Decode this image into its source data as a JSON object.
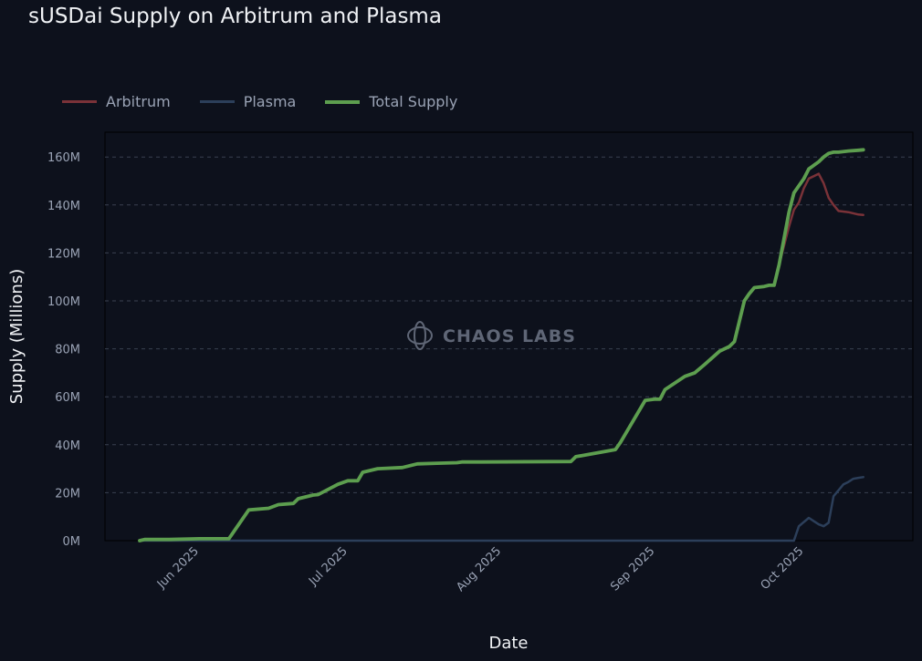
{
  "chart_data": {
    "type": "line",
    "title": "sUSDai Supply on Arbitrum and Plasma",
    "xlabel": "Date",
    "ylabel": "Supply (Millions)",
    "ylim": [
      0,
      170
    ],
    "y_ticks": [
      0,
      20,
      40,
      60,
      80,
      100,
      120,
      140,
      160
    ],
    "y_tick_labels": [
      "0M",
      "20M",
      "40M",
      "60M",
      "80M",
      "100M",
      "120M",
      "140M",
      "160M"
    ],
    "x_ticks": [
      "2025-06-01",
      "2025-07-01",
      "2025-08-01",
      "2025-09-01",
      "2025-10-01"
    ],
    "x_tick_labels": [
      "Jun 2025",
      "Jul 2025",
      "Aug 2025",
      "Sep 2025",
      "Oct 2025"
    ],
    "xlim": [
      "2025-05-13",
      "2025-10-23"
    ],
    "grid": "horizontal dashed",
    "legend_position": "top-left",
    "watermark": "CHAOS LABS",
    "series": [
      {
        "name": "Arbitrum",
        "color": "#7a3238",
        "x": [
          "2025-05-20",
          "2025-05-21",
          "2025-05-26",
          "2025-06-01",
          "2025-06-07",
          "2025-06-11",
          "2025-06-15",
          "2025-06-17",
          "2025-06-20",
          "2025-06-21",
          "2025-06-24",
          "2025-06-25",
          "2025-06-29",
          "2025-07-01",
          "2025-07-03",
          "2025-07-04",
          "2025-07-07",
          "2025-07-12",
          "2025-07-15",
          "2025-07-19",
          "2025-07-23",
          "2025-07-24",
          "2025-07-28",
          "2025-08-15",
          "2025-08-16",
          "2025-08-24",
          "2025-08-25",
          "2025-08-30",
          "2025-09-01",
          "2025-09-02",
          "2025-09-03",
          "2025-09-07",
          "2025-09-09",
          "2025-09-11",
          "2025-09-14",
          "2025-09-16",
          "2025-09-17",
          "2025-09-19",
          "2025-09-20",
          "2025-09-21",
          "2025-09-23",
          "2025-09-24",
          "2025-09-25",
          "2025-09-26",
          "2025-09-28",
          "2025-09-29",
          "2025-09-30",
          "2025-10-01",
          "2025-10-02",
          "2025-10-04",
          "2025-10-05",
          "2025-10-06",
          "2025-10-07",
          "2025-10-08",
          "2025-10-10",
          "2025-10-12",
          "2025-10-13"
        ],
        "values": [
          0,
          0.5,
          0.5,
          0.8,
          0.8,
          12.8,
          13.5,
          15,
          15.5,
          17.5,
          19,
          19.2,
          23.5,
          25,
          25,
          28.5,
          30,
          30.5,
          32,
          32.3,
          32.5,
          32.8,
          32.8,
          33,
          35,
          38,
          41,
          58.5,
          59,
          59,
          63,
          68.5,
          70,
          73.5,
          79,
          81,
          83,
          100,
          103,
          105.5,
          106,
          106.5,
          106.5,
          115,
          131,
          138,
          141,
          147,
          151,
          153,
          149,
          143,
          140,
          137.5,
          137,
          136,
          135.8
        ]
      },
      {
        "name": "Plasma",
        "color": "#2c3f5a",
        "x": [
          "2025-05-20",
          "2025-09-29",
          "2025-09-30",
          "2025-10-02",
          "2025-10-04",
          "2025-10-05",
          "2025-10-06",
          "2025-10-07",
          "2025-10-09",
          "2025-10-10",
          "2025-10-11",
          "2025-10-12",
          "2025-10-13"
        ],
        "values": [
          0,
          0,
          6,
          9.5,
          6.8,
          6,
          7.5,
          18.5,
          23.5,
          24.5,
          25.8,
          26.2,
          26.5
        ]
      },
      {
        "name": "Total Supply",
        "color": "#5d9e4f",
        "x": [
          "2025-05-20",
          "2025-05-21",
          "2025-05-26",
          "2025-06-01",
          "2025-06-07",
          "2025-06-11",
          "2025-06-15",
          "2025-06-17",
          "2025-06-20",
          "2025-06-21",
          "2025-06-24",
          "2025-06-25",
          "2025-06-29",
          "2025-07-01",
          "2025-07-03",
          "2025-07-04",
          "2025-07-07",
          "2025-07-12",
          "2025-07-15",
          "2025-07-19",
          "2025-07-23",
          "2025-07-24",
          "2025-07-28",
          "2025-08-15",
          "2025-08-16",
          "2025-08-24",
          "2025-08-25",
          "2025-08-30",
          "2025-09-01",
          "2025-09-02",
          "2025-09-03",
          "2025-09-07",
          "2025-09-09",
          "2025-09-11",
          "2025-09-14",
          "2025-09-16",
          "2025-09-17",
          "2025-09-19",
          "2025-09-20",
          "2025-09-21",
          "2025-09-23",
          "2025-09-24",
          "2025-09-25",
          "2025-09-26",
          "2025-09-28",
          "2025-09-29",
          "2025-09-30",
          "2025-10-01",
          "2025-10-02",
          "2025-10-04",
          "2025-10-05",
          "2025-10-06",
          "2025-10-07",
          "2025-10-08",
          "2025-10-10",
          "2025-10-12",
          "2025-10-13"
        ],
        "values": [
          0,
          0.5,
          0.5,
          0.8,
          0.8,
          12.8,
          13.5,
          15,
          15.5,
          17.5,
          19,
          19.2,
          23.5,
          25,
          25,
          28.5,
          30,
          30.5,
          32,
          32.3,
          32.5,
          32.8,
          32.8,
          33,
          35,
          38,
          41,
          58.5,
          59,
          59,
          63,
          68.5,
          70,
          73.5,
          79,
          81,
          83,
          100,
          103,
          105.5,
          106,
          106.5,
          106.5,
          115,
          137,
          145,
          148,
          151,
          155,
          158,
          160,
          161.5,
          162,
          162,
          162.5,
          162.8,
          163
        ]
      }
    ]
  }
}
